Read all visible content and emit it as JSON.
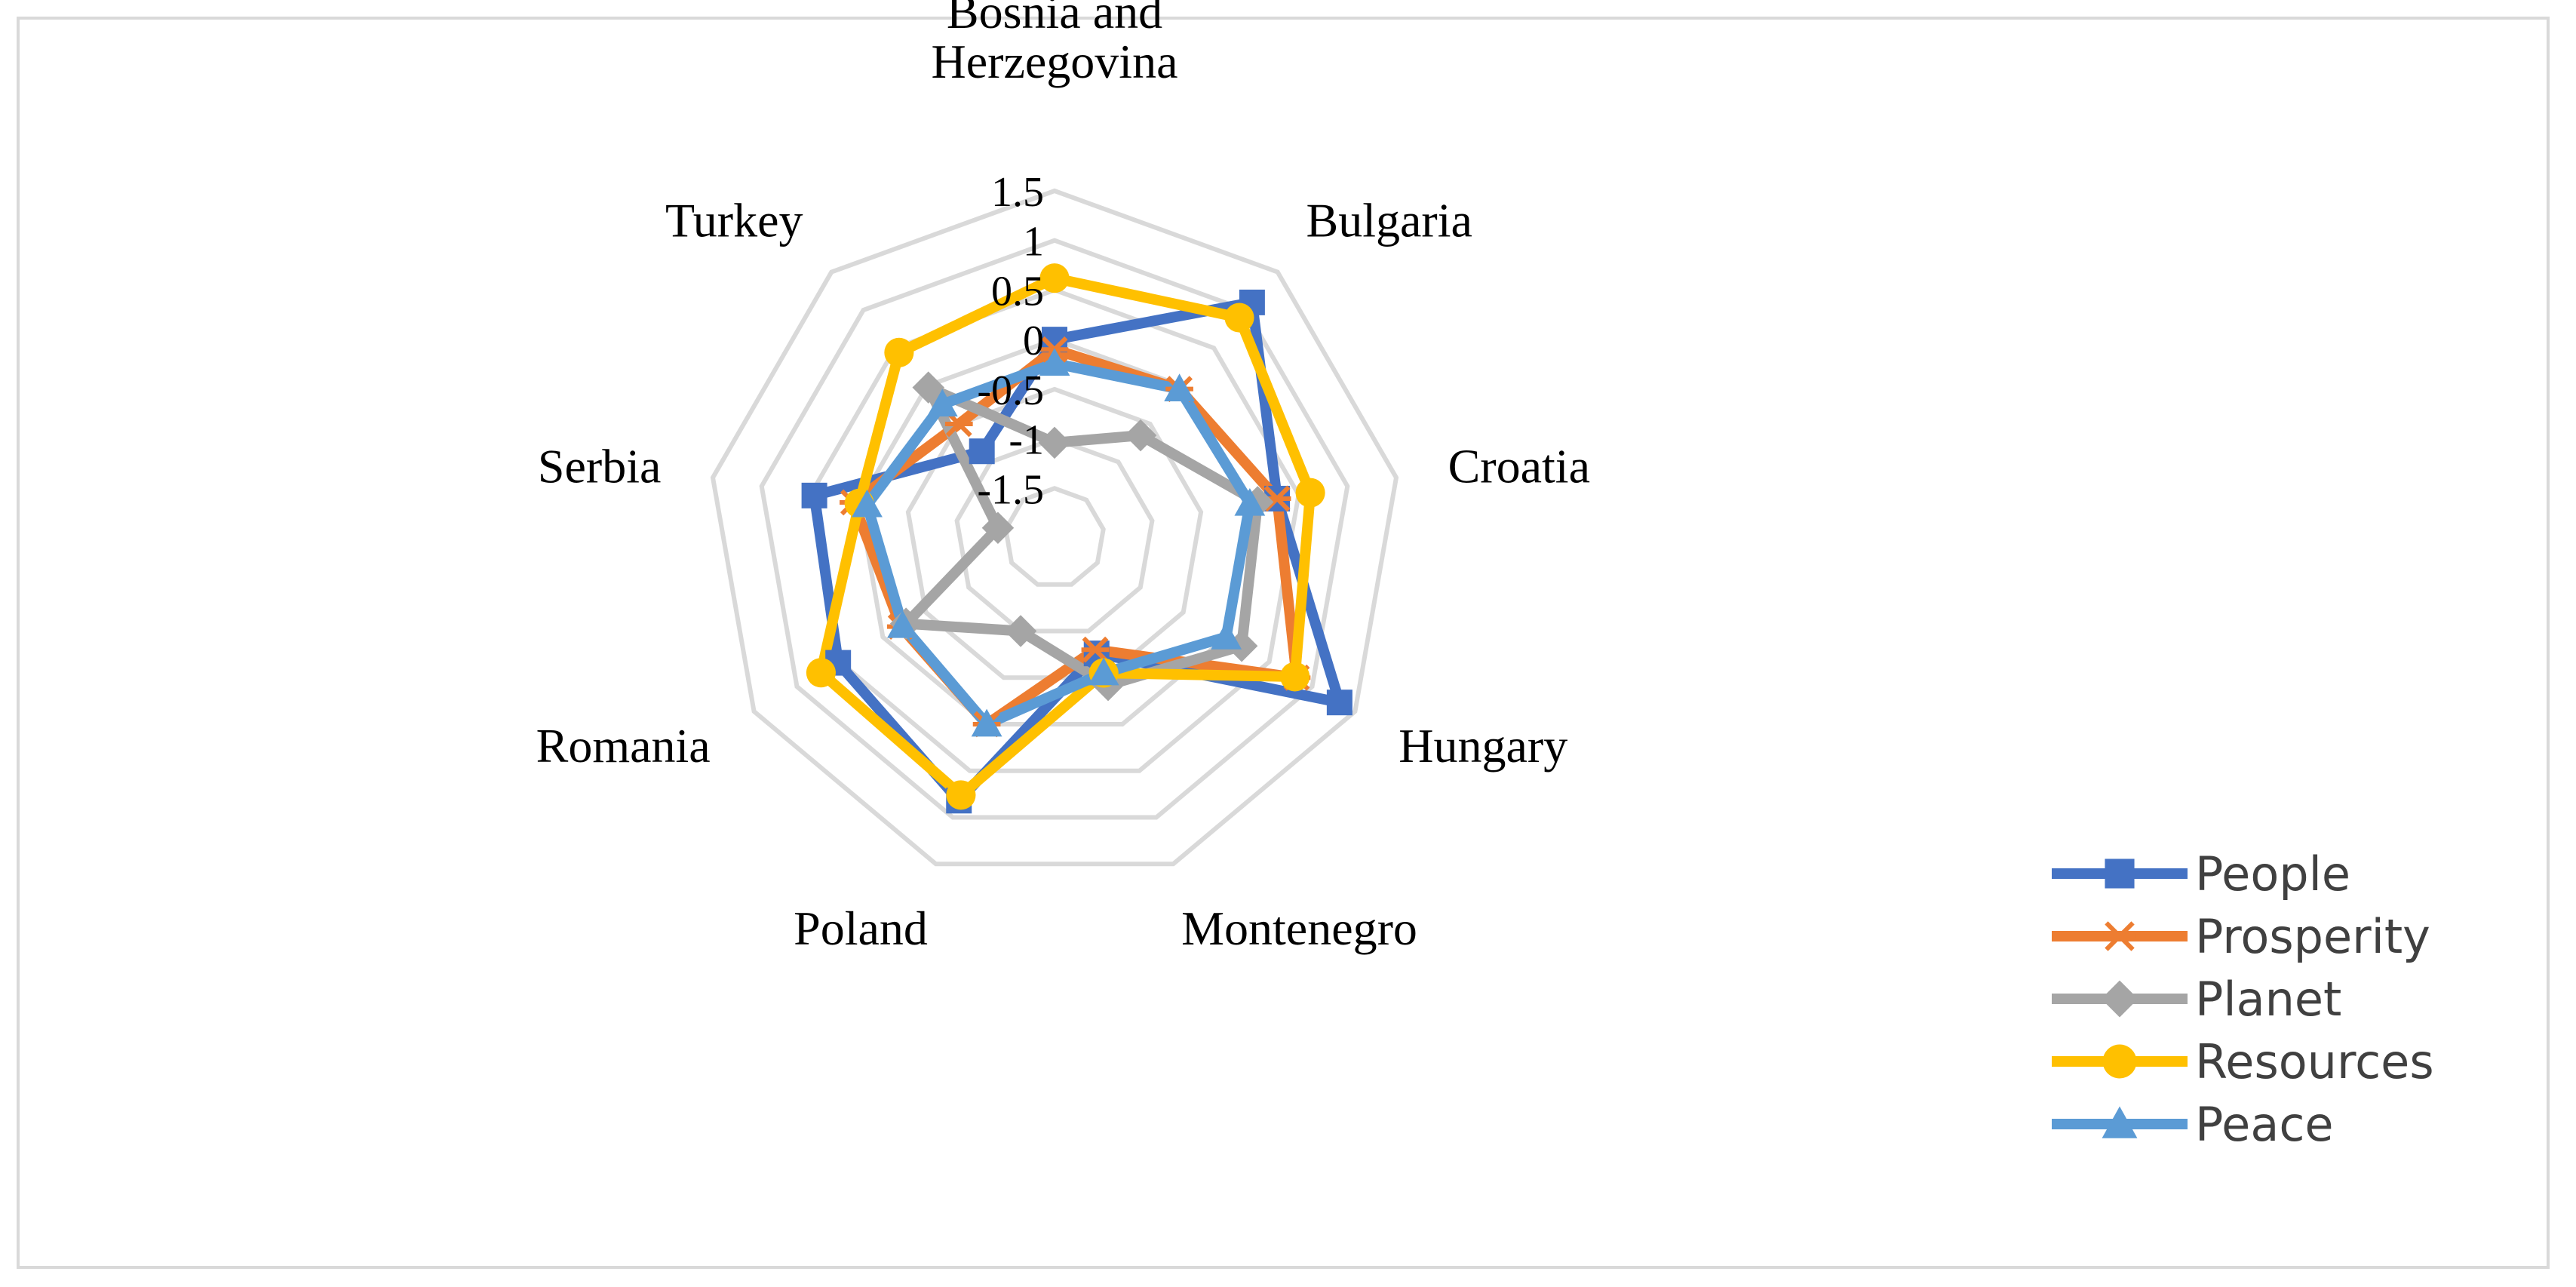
{
  "chart_data": {
    "type": "radar",
    "categories": [
      "Bosnia and Herzegovina",
      "Bulgaria",
      "Croatia",
      "Hungary",
      "Montenegro",
      "Poland",
      "Romania",
      "Serbia",
      "Turkey"
    ],
    "category_label_lines": [
      [
        "Bosnia and",
        "Herzegovina"
      ],
      [
        "Bulgaria"
      ],
      [
        "Croatia"
      ],
      [
        "Hungary"
      ],
      [
        "Montenegro"
      ],
      [
        "Poland"
      ],
      [
        "Romania"
      ],
      [
        "Serbia"
      ],
      [
        "Turkey"
      ]
    ],
    "rlim": [
      -2,
      1.5
    ],
    "ticks": [
      -1.5,
      -1,
      -0.5,
      0,
      0.5,
      1,
      1.5
    ],
    "tick_labels": [
      "-1.5",
      "-1",
      "-0.5",
      "0",
      "0.5",
      "1",
      "1.5"
    ],
    "grid": true,
    "legend_position": "right",
    "series": [
      {
        "name": "People",
        "color": "#4472c4",
        "marker": "square",
        "values": [
          0.0,
          1.1,
          0.28,
          1.32,
          -0.76,
          0.82,
          0.52,
          0.46,
          -0.86
        ]
      },
      {
        "name": "Prosperity",
        "color": "#ed7d31",
        "marker": "x",
        "values": [
          -0.1,
          -0.04,
          0.28,
          0.82,
          -0.8,
          0.0,
          -0.21,
          0.06,
          -0.5
        ]
      },
      {
        "name": "Planet",
        "color": "#a5a5a5",
        "marker": "diamond",
        "values": [
          -1.04,
          -0.65,
          0.08,
          0.18,
          -0.42,
          -1.0,
          -0.27,
          -1.42,
          -0.02
        ]
      },
      {
        "name": "Resources",
        "color": "#ffc000",
        "marker": "circle",
        "values": [
          0.62,
          0.9,
          0.62,
          0.8,
          -0.55,
          0.76,
          0.72,
          0.0,
          0.44
        ]
      },
      {
        "name": "Peace",
        "color": "#5b9bd5",
        "marker": "triangle",
        "values": [
          -0.24,
          -0.04,
          0.0,
          0.0,
          -0.55,
          0.0,
          -0.23,
          -0.08,
          -0.24
        ]
      }
    ]
  }
}
